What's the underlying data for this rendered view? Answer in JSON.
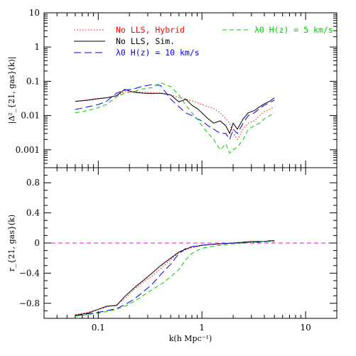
{
  "chart_data": [
    {
      "type": "line",
      "panel": "top",
      "ylabel": "|Δ²_{21, gas}(k)|",
      "xscale": "log",
      "yscale": "log",
      "xlim": [
        0.03,
        20
      ],
      "ylim": [
        0.0003,
        10
      ],
      "xticks": [
        0.1,
        1,
        10
      ],
      "yticks": [
        0.001,
        0.01,
        0.1,
        1,
        10
      ],
      "ytick_labels": [
        "0.001",
        "0.01",
        "0.1",
        "1",
        "10"
      ],
      "legend": [
        "No LLS, Hybrid",
        "No LLS, Sim.",
        "λ0 H(z) = 10 km/s",
        "λ0 H(z) = 5 km/s"
      ],
      "series": [
        {
          "name": "No LLS, Hybrid",
          "color": "#ff0000",
          "dash": "dotted",
          "x": [
            0.06,
            0.08,
            0.1,
            0.12,
            0.15,
            0.18,
            0.22,
            0.27,
            0.33,
            0.4,
            0.5,
            0.6,
            0.7,
            0.8,
            0.9,
            1.0,
            1.15,
            1.3,
            1.5,
            1.7,
            1.85,
            2.0,
            2.2,
            2.5,
            2.8,
            3.2,
            3.6,
            4.0,
            4.5,
            5.0
          ],
          "y": [
            0.026,
            0.029,
            0.032,
            0.033,
            0.037,
            0.05,
            0.05,
            0.048,
            0.046,
            0.045,
            0.04,
            0.034,
            0.03,
            0.027,
            0.024,
            0.021,
            0.018,
            0.016,
            0.012,
            0.008,
            0.006,
            0.003,
            0.002,
            0.004,
            0.006,
            0.007,
            0.01,
            0.013,
            0.015,
            0.018
          ]
        },
        {
          "name": "No LLS, Sim.",
          "color": "#000000",
          "dash": "solid",
          "x": [
            0.06,
            0.08,
            0.1,
            0.12,
            0.15,
            0.18,
            0.22,
            0.27,
            0.33,
            0.4,
            0.5,
            0.6,
            0.7,
            0.8,
            0.9,
            1.0,
            1.15,
            1.3,
            1.5,
            1.7,
            1.85,
            2.0,
            2.2,
            2.5,
            2.8,
            3.2,
            3.6,
            4.0,
            4.5,
            5.0
          ],
          "y": [
            0.026,
            0.028,
            0.031,
            0.033,
            0.038,
            0.058,
            0.048,
            0.045,
            0.044,
            0.045,
            0.04,
            0.025,
            0.03,
            0.02,
            0.016,
            0.012,
            0.008,
            0.006,
            0.007,
            0.005,
            0.003,
            0.006,
            0.004,
            0.008,
            0.012,
            0.014,
            0.018,
            0.022,
            0.026,
            0.033
          ]
        },
        {
          "name": "λ0 H(z) = 10 km/s",
          "color": "#0000ff",
          "dash": "long-dash",
          "x": [
            0.06,
            0.08,
            0.1,
            0.12,
            0.15,
            0.18,
            0.22,
            0.27,
            0.33,
            0.4,
            0.5,
            0.6,
            0.7,
            0.8,
            0.9,
            1.0,
            1.15,
            1.3,
            1.5,
            1.7,
            1.85,
            2.0,
            2.2,
            2.5,
            2.8,
            3.2,
            3.6,
            4.0,
            4.5,
            5.0
          ],
          "y": [
            0.015,
            0.018,
            0.021,
            0.026,
            0.045,
            0.055,
            0.06,
            0.072,
            0.08,
            0.075,
            0.03,
            0.018,
            0.012,
            0.01,
            0.008,
            0.007,
            0.005,
            0.004,
            0.003,
            0.003,
            0.002,
            0.004,
            0.003,
            0.006,
            0.01,
            0.012,
            0.016,
            0.02,
            0.024,
            0.028
          ]
        },
        {
          "name": "λ0 H(z) = 5 km/s",
          "color": "#00cc00",
          "dash": "short-dash",
          "x": [
            0.06,
            0.08,
            0.1,
            0.12,
            0.15,
            0.18,
            0.22,
            0.27,
            0.33,
            0.4,
            0.5,
            0.6,
            0.7,
            0.8,
            0.9,
            1.0,
            1.15,
            1.3,
            1.5,
            1.7,
            1.85,
            2.0,
            2.2,
            2.5,
            2.8,
            3.2,
            3.6,
            4.0,
            4.5,
            5.0
          ],
          "y": [
            0.012,
            0.014,
            0.017,
            0.021,
            0.035,
            0.045,
            0.05,
            0.06,
            0.065,
            0.09,
            0.07,
            0.04,
            0.02,
            0.012,
            0.008,
            0.005,
            0.003,
            0.002,
            0.001,
            0.0015,
            0.0008,
            0.001,
            0.0012,
            0.002,
            0.004,
            0.005,
            0.006,
            0.008,
            0.01,
            0.012
          ]
        }
      ]
    },
    {
      "type": "line",
      "panel": "bottom",
      "xlabel": "k(h Mpc⁻¹)",
      "ylabel": "r_{21, gas}(k)",
      "xscale": "log",
      "xlim": [
        0.03,
        20
      ],
      "ylim": [
        -1,
        1
      ],
      "xticks": [
        0.1,
        1,
        10
      ],
      "xtick_labels": [
        "0.1",
        "1",
        "10"
      ],
      "yticks": [
        -0.8,
        -0.4,
        0,
        0.4,
        0.8
      ],
      "ytick_labels": [
        "−0.8",
        "−0.4",
        "0",
        "0.4",
        "0.8"
      ],
      "reference_line": {
        "y": 0,
        "color": "#ff00ff",
        "dash": "dashed"
      },
      "series": [
        {
          "name": "No LLS, Hybrid",
          "color": "#ff0000",
          "dash": "dotted",
          "x": [
            0.06,
            0.08,
            0.1,
            0.12,
            0.15,
            0.18,
            0.22,
            0.27,
            0.33,
            0.4,
            0.5,
            0.6,
            0.7,
            0.8,
            0.9,
            1.0,
            1.2,
            1.5,
            2.0,
            2.5,
            3.0,
            3.5,
            4.0,
            4.5,
            5.0
          ],
          "y": [
            -0.95,
            -0.92,
            -0.88,
            -0.85,
            -0.82,
            -0.74,
            -0.62,
            -0.52,
            -0.44,
            -0.34,
            -0.22,
            -0.13,
            -0.09,
            -0.06,
            -0.05,
            -0.03,
            -0.02,
            -0.01,
            0.0,
            0.01,
            0.01,
            0.02,
            0.02,
            0.02,
            0.02
          ]
        },
        {
          "name": "No LLS, Sim.",
          "color": "#000000",
          "dash": "solid",
          "x": [
            0.06,
            0.08,
            0.1,
            0.12,
            0.15,
            0.18,
            0.22,
            0.27,
            0.33,
            0.4,
            0.5,
            0.6,
            0.7,
            0.8,
            0.9,
            1.0,
            1.2,
            1.5,
            2.0,
            2.5,
            3.0,
            3.5,
            4.0,
            4.5,
            5.0
          ],
          "y": [
            -0.96,
            -0.93,
            -0.88,
            -0.84,
            -0.83,
            -0.71,
            -0.6,
            -0.5,
            -0.4,
            -0.3,
            -0.2,
            -0.12,
            -0.08,
            -0.05,
            -0.04,
            -0.03,
            -0.02,
            -0.01,
            0.0,
            0.01,
            0.02,
            0.02,
            0.02,
            0.03,
            0.03
          ]
        },
        {
          "name": "λ0 H(z) = 10 km/s",
          "color": "#0000ff",
          "dash": "long-dash",
          "x": [
            0.06,
            0.08,
            0.1,
            0.12,
            0.15,
            0.18,
            0.22,
            0.27,
            0.33,
            0.4,
            0.5,
            0.6,
            0.7,
            0.8,
            0.9,
            1.0,
            1.2,
            1.5,
            2.0,
            2.5,
            3.0,
            3.5,
            4.0,
            4.5,
            5.0
          ],
          "y": [
            -0.97,
            -0.94,
            -0.92,
            -0.9,
            -0.87,
            -0.82,
            -0.75,
            -0.65,
            -0.55,
            -0.42,
            -0.28,
            -0.14,
            -0.07,
            -0.05,
            -0.04,
            -0.03,
            -0.02,
            -0.01,
            0.0,
            0.0,
            0.01,
            0.01,
            0.02,
            0.02,
            0.02
          ]
        },
        {
          "name": "λ0 H(z) = 5 km/s",
          "color": "#00cc00",
          "dash": "short-dash",
          "x": [
            0.06,
            0.08,
            0.1,
            0.12,
            0.15,
            0.18,
            0.22,
            0.27,
            0.33,
            0.4,
            0.5,
            0.6,
            0.7,
            0.8,
            0.9,
            1.0,
            1.2,
            1.5,
            2.0,
            2.5,
            3.0,
            3.5,
            4.0,
            4.5,
            5.0
          ],
          "y": [
            -0.97,
            -0.95,
            -0.93,
            -0.91,
            -0.88,
            -0.84,
            -0.78,
            -0.7,
            -0.62,
            -0.55,
            -0.45,
            -0.35,
            -0.22,
            -0.14,
            -0.1,
            -0.07,
            -0.05,
            -0.03,
            -0.01,
            0.0,
            0.01,
            0.01,
            0.02,
            0.02,
            0.02
          ]
        }
      ]
    }
  ]
}
